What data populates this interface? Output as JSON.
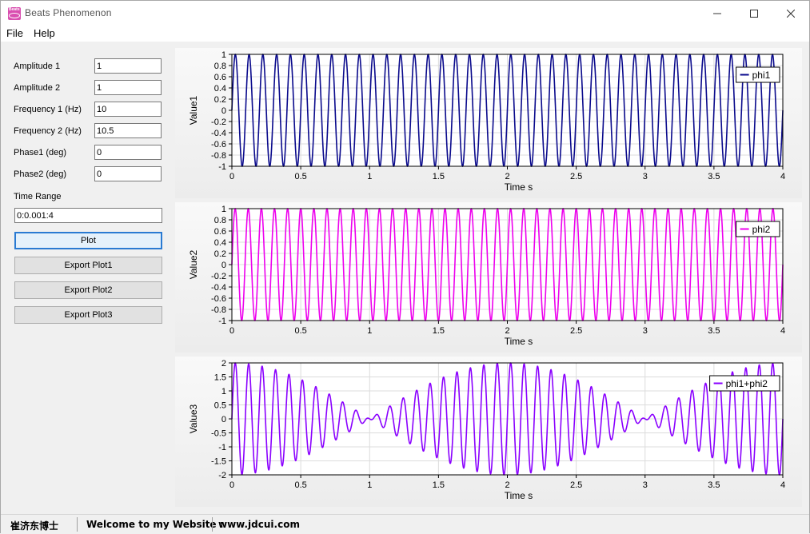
{
  "window": {
    "title": "Beats Phenomenon",
    "icon_text": "Beats"
  },
  "menu": {
    "file": "File",
    "help": "Help"
  },
  "form": {
    "amp1": {
      "label": "Amplitude 1",
      "value": "1"
    },
    "amp2": {
      "label": "Amplitude 2",
      "value": "1"
    },
    "freq1": {
      "label": "Frequency 1 (Hz)",
      "value": "10"
    },
    "freq2": {
      "label": "Frequency 2 (Hz)",
      "value": "10.5"
    },
    "phase1": {
      "label": "Phase1 (deg)",
      "value": "0"
    },
    "phase2": {
      "label": "Phase2 (deg)",
      "value": "0"
    },
    "time_range": {
      "label": "Time Range",
      "value": "0:0.001:4"
    }
  },
  "buttons": {
    "plot": "Plot",
    "export1": "Export  Plot1",
    "export2": "Export  Plot2",
    "export3": "Export  Plot3"
  },
  "status": {
    "author": "崔济东博士",
    "welcome": "Welcome to my Website :",
    "url": "www.jdcui.com"
  },
  "colors": {
    "phi1": "#0a0a8c",
    "phi2": "#ee00ee",
    "sum": "#8a00ff"
  },
  "chart_data": [
    {
      "type": "line",
      "xlabel": "Time s",
      "ylabel": "Value1",
      "xlim": [
        0,
        4
      ],
      "ylim": [
        -1,
        1
      ],
      "xticks": [
        "0",
        "0.5",
        "1",
        "1.5",
        "2",
        "2.5",
        "3",
        "3.5",
        "4"
      ],
      "yticks": [
        "1",
        "0.8",
        "0.6",
        "0.4",
        "0.2",
        "0",
        "-0.2",
        "-0.4",
        "-0.6",
        "-0.8",
        "-1"
      ],
      "legend": "top-right",
      "grid": true,
      "series": [
        {
          "name": "phi1",
          "function": "1*sin(2*pi*10*t)",
          "x_range": "0:0.001:4"
        }
      ]
    },
    {
      "type": "line",
      "xlabel": "Time s",
      "ylabel": "Value2",
      "xlim": [
        0,
        4
      ],
      "ylim": [
        -1,
        1
      ],
      "xticks": [
        "0",
        "0.5",
        "1",
        "1.5",
        "2",
        "2.5",
        "3",
        "3.5",
        "4"
      ],
      "yticks": [
        "1",
        "0.8",
        "0.6",
        "0.4",
        "0.2",
        "0",
        "-0.2",
        "-0.4",
        "-0.6",
        "-0.8",
        "-1"
      ],
      "legend": "top-right",
      "grid": true,
      "series": [
        {
          "name": "phi2",
          "function": "1*sin(2*pi*10.5*t)",
          "x_range": "0:0.001:4"
        }
      ]
    },
    {
      "type": "line",
      "xlabel": "Time s",
      "ylabel": "Value3",
      "xlim": [
        0,
        4
      ],
      "ylim": [
        -2,
        2
      ],
      "xticks": [
        "0",
        "0.5",
        "1",
        "1.5",
        "2",
        "2.5",
        "3",
        "3.5",
        "4"
      ],
      "yticks": [
        "2",
        "1.5",
        "1",
        "0.5",
        "0",
        "-0.5",
        "-1",
        "-1.5",
        "-2"
      ],
      "legend": "top-right",
      "grid": true,
      "series": [
        {
          "name": "phi1+phi2",
          "function": "sin(2*pi*10*t)+sin(2*pi*10.5*t)",
          "x_range": "0:0.001:4"
        }
      ]
    }
  ]
}
